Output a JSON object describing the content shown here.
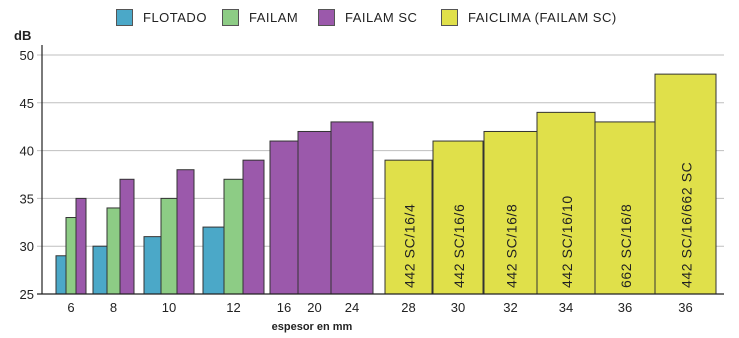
{
  "chart_data": {
    "type": "bar",
    "ylabel": "dB",
    "xlabel": "espesor en mm",
    "ylim": [
      25,
      50
    ],
    "yticks": [
      25,
      30,
      35,
      40,
      45,
      50
    ],
    "grid": true,
    "legend": [
      {
        "name": "FLOTADO",
        "color": "#4ba8c8"
      },
      {
        "name": "FAILAM",
        "color": "#8dcc85"
      },
      {
        "name": "FAILAM SC",
        "color": "#9b59ab"
      },
      {
        "name": "FAICLIMA (FAILAM SC)",
        "color": "#e0e04a"
      }
    ],
    "groups": [
      {
        "x": "6",
        "bars": [
          {
            "series": "FLOTADO",
            "value": 29
          },
          {
            "series": "FAILAM",
            "value": 33
          },
          {
            "series": "FAILAM SC",
            "value": 35
          }
        ]
      },
      {
        "x": "8",
        "bars": [
          {
            "series": "FLOTADO",
            "value": 30
          },
          {
            "series": "FAILAM",
            "value": 34
          },
          {
            "series": "FAILAM SC",
            "value": 37
          }
        ]
      },
      {
        "x": "10",
        "bars": [
          {
            "series": "FLOTADO",
            "value": 31
          },
          {
            "series": "FAILAM",
            "value": 35
          },
          {
            "series": "FAILAM SC",
            "value": 38
          }
        ]
      },
      {
        "x": "12",
        "bars": [
          {
            "series": "FLOTADO",
            "value": 32
          },
          {
            "series": "FAILAM",
            "value": 37
          },
          {
            "series": "FAILAM SC",
            "value": 39
          }
        ]
      },
      {
        "x": "16",
        "bars": [
          {
            "series": "FAILAM SC",
            "value": 41
          }
        ]
      },
      {
        "x": "20",
        "bars": [
          {
            "series": "FAILAM SC",
            "value": 42
          }
        ]
      },
      {
        "x": "24",
        "bars": [
          {
            "series": "FAILAM SC",
            "value": 43
          }
        ]
      },
      {
        "x": "28",
        "bars": [
          {
            "series": "FAICLIMA (FAILAM SC)",
            "value": 39,
            "label": "442 SC/16/4"
          }
        ]
      },
      {
        "x": "30",
        "bars": [
          {
            "series": "FAICLIMA (FAILAM SC)",
            "value": 41,
            "label": "442 SC/16/6"
          }
        ]
      },
      {
        "x": "32",
        "bars": [
          {
            "series": "FAICLIMA (FAILAM SC)",
            "value": 42,
            "label": "442 SC/16/8"
          }
        ]
      },
      {
        "x": "34",
        "bars": [
          {
            "series": "FAICLIMA (FAILAM SC)",
            "value": 44,
            "label": "442 SC/16/10"
          }
        ]
      },
      {
        "x": "36",
        "bars": [
          {
            "series": "FAICLIMA (FAILAM SC)",
            "value": 43,
            "label": "662 SC/16/8"
          }
        ]
      },
      {
        "x": "36",
        "bars": [
          {
            "series": "FAICLIMA (FAILAM SC)",
            "value": 48,
            "label": "442 SC/16/662 SC"
          }
        ]
      }
    ]
  }
}
